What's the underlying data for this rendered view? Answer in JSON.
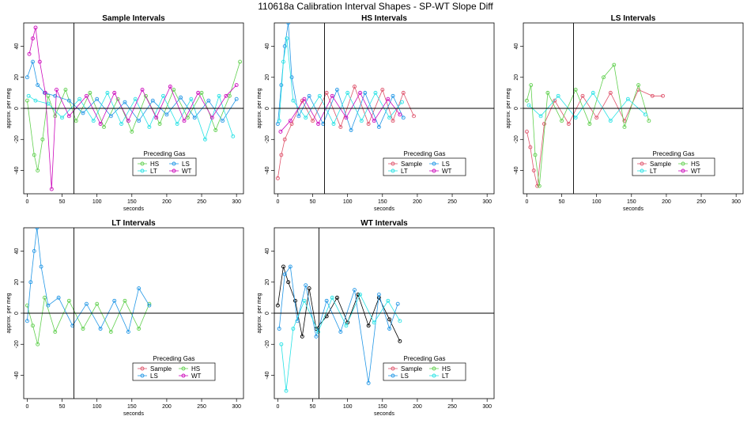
{
  "figure_title": "110618a   Calibration Interval Shapes - SP-WT Slope Diff",
  "colors": {
    "Sample": "#df536b",
    "HS": "#61d04f",
    "LS": "#2297e6",
    "LT": "#28e2e5",
    "WT": "#cd0bbc",
    "LSalt": "#f5c710",
    "black": "#000000"
  },
  "chart_data": [
    {
      "type": "scatter",
      "title": "Sample Intervals",
      "xlabel": "seconds",
      "ylabel": "approx. per meg",
      "xlim": [
        -5,
        310
      ],
      "ylim": [
        -55,
        55
      ],
      "xticks": [
        0,
        50,
        100,
        150,
        200,
        250,
        300
      ],
      "yticks": [
        -40,
        -20,
        0,
        20,
        40
      ],
      "vline_x": 67,
      "hline_y": 0,
      "legend": {
        "title": "Preceding Gas",
        "placement": "bottom-center",
        "entries": [
          "HS",
          "LS",
          "LT",
          "WT"
        ]
      },
      "series": [
        {
          "name": "HS",
          "color": "#61d04f",
          "points": [
            [
              0,
              5
            ],
            [
              10,
              -30
            ],
            [
              15,
              -40
            ],
            [
              22,
              -20
            ],
            [
              30,
              8
            ],
            [
              40,
              -5
            ],
            [
              55,
              12
            ],
            [
              70,
              -8
            ],
            [
              90,
              10
            ],
            [
              110,
              -12
            ],
            [
              130,
              6
            ],
            [
              150,
              -15
            ],
            [
              170,
              8
            ],
            [
              190,
              -10
            ],
            [
              210,
              12
            ],
            [
              230,
              -6
            ],
            [
              250,
              10
            ],
            [
              270,
              -14
            ],
            [
              290,
              8
            ],
            [
              305,
              30
            ]
          ]
        },
        {
          "name": "LS",
          "color": "#2297e6",
          "points": [
            [
              0,
              20
            ],
            [
              8,
              30
            ],
            [
              15,
              15
            ],
            [
              25,
              10
            ],
            [
              40,
              8
            ],
            [
              60,
              5
            ],
            [
              80,
              -3
            ],
            [
              100,
              6
            ],
            [
              120,
              -5
            ],
            [
              140,
              4
            ],
            [
              160,
              -8
            ],
            [
              180,
              5
            ],
            [
              200,
              -4
            ],
            [
              220,
              7
            ],
            [
              240,
              -6
            ],
            [
              260,
              5
            ],
            [
              280,
              -8
            ],
            [
              300,
              6
            ]
          ]
        },
        {
          "name": "LT",
          "color": "#28e2e5",
          "points": [
            [
              2,
              8
            ],
            [
              12,
              5
            ],
            [
              30,
              3
            ],
            [
              50,
              -6
            ],
            [
              75,
              6
            ],
            [
              95,
              -8
            ],
            [
              115,
              10
            ],
            [
              135,
              -10
            ],
            [
              155,
              6
            ],
            [
              175,
              -12
            ],
            [
              195,
              8
            ],
            [
              215,
              -10
            ],
            [
              235,
              6
            ],
            [
              255,
              -20
            ],
            [
              275,
              8
            ],
            [
              295,
              -18
            ]
          ]
        },
        {
          "name": "WT",
          "color": "#cd0bbc",
          "points": [
            [
              3,
              35
            ],
            [
              8,
              45
            ],
            [
              12,
              52
            ],
            [
              18,
              30
            ],
            [
              26,
              10
            ],
            [
              35,
              -52
            ],
            [
              42,
              12
            ],
            [
              60,
              -5
            ],
            [
              85,
              8
            ],
            [
              105,
              -10
            ],
            [
              125,
              10
            ],
            [
              145,
              -8
            ],
            [
              165,
              12
            ],
            [
              185,
              -6
            ],
            [
              205,
              14
            ],
            [
              225,
              -8
            ],
            [
              245,
              10
            ],
            [
              265,
              -6
            ],
            [
              285,
              8
            ],
            [
              300,
              15
            ]
          ]
        }
      ]
    },
    {
      "type": "scatter",
      "title": "HS Intervals",
      "xlabel": "seconds",
      "ylabel": "approx. per meg",
      "xlim": [
        -5,
        310
      ],
      "ylim": [
        -55,
        55
      ],
      "xticks": [
        0,
        50,
        100,
        150,
        200,
        250,
        300
      ],
      "yticks": [
        -40,
        -20,
        0,
        20,
        40
      ],
      "vline_x": 67,
      "hline_y": 0,
      "legend": {
        "title": "Preceding Gas",
        "placement": "bottom-center",
        "entries": [
          "Sample",
          "LS",
          "LT",
          "WT"
        ]
      },
      "series": [
        {
          "name": "Sample",
          "color": "#df536b",
          "points": [
            [
              0,
              -45
            ],
            [
              5,
              -30
            ],
            [
              10,
              -20
            ],
            [
              20,
              -10
            ],
            [
              35,
              5
            ],
            [
              50,
              -8
            ],
            [
              70,
              10
            ],
            [
              90,
              -12
            ],
            [
              110,
              14
            ],
            [
              130,
              -10
            ],
            [
              150,
              12
            ],
            [
              165,
              -8
            ],
            [
              180,
              10
            ],
            [
              195,
              -5
            ]
          ]
        },
        {
          "name": "LS",
          "color": "#2297e6",
          "points": [
            [
              0,
              -10
            ],
            [
              5,
              15
            ],
            [
              10,
              40
            ],
            [
              15,
              55
            ],
            [
              20,
              20
            ],
            [
              30,
              -5
            ],
            [
              45,
              8
            ],
            [
              65,
              -10
            ],
            [
              85,
              12
            ],
            [
              105,
              -14
            ],
            [
              125,
              10
            ],
            [
              145,
              -12
            ],
            [
              165,
              8
            ],
            [
              180,
              -6
            ]
          ]
        },
        {
          "name": "LT",
          "color": "#28e2e5",
          "points": [
            [
              2,
              -8
            ],
            [
              8,
              30
            ],
            [
              13,
              45
            ],
            [
              22,
              5
            ],
            [
              40,
              -6
            ],
            [
              60,
              8
            ],
            [
              80,
              -10
            ],
            [
              100,
              10
            ],
            [
              120,
              -8
            ],
            [
              140,
              10
            ],
            [
              160,
              -6
            ],
            [
              178,
              4
            ]
          ]
        },
        {
          "name": "WT",
          "color": "#cd0bbc",
          "points": [
            [
              4,
              -15
            ],
            [
              18,
              -8
            ],
            [
              38,
              6
            ],
            [
              58,
              -10
            ],
            [
              78,
              8
            ],
            [
              98,
              -6
            ],
            [
              118,
              10
            ],
            [
              138,
              -8
            ],
            [
              158,
              6
            ],
            [
              175,
              -4
            ]
          ]
        }
      ]
    },
    {
      "type": "scatter",
      "title": "LS Intervals",
      "xlabel": "seconds",
      "ylabel": "approx. per meg",
      "xlim": [
        -5,
        310
      ],
      "ylim": [
        -55,
        55
      ],
      "xticks": [
        0,
        50,
        100,
        150,
        200,
        250,
        300
      ],
      "yticks": [
        -40,
        -20,
        0,
        20,
        40
      ],
      "vline_x": 67,
      "hline_y": 0,
      "legend": {
        "title": "Preceding Gas",
        "placement": "bottom-center",
        "entries": [
          "Sample",
          "HS",
          "LT",
          "WT"
        ]
      },
      "series": [
        {
          "name": "Sample",
          "color": "#df536b",
          "points": [
            [
              0,
              -15
            ],
            [
              5,
              -25
            ],
            [
              10,
              -40
            ],
            [
              15,
              -50
            ],
            [
              25,
              -10
            ],
            [
              40,
              5
            ],
            [
              60,
              -10
            ],
            [
              80,
              8
            ],
            [
              100,
              -6
            ],
            [
              120,
              10
            ],
            [
              140,
              -8
            ],
            [
              160,
              12
            ],
            [
              180,
              8
            ],
            [
              195,
              8
            ]
          ]
        },
        {
          "name": "HS",
          "color": "#61d04f",
          "points": [
            [
              0,
              5
            ],
            [
              6,
              15
            ],
            [
              12,
              -30
            ],
            [
              18,
              -50
            ],
            [
              30,
              10
            ],
            [
              50,
              -8
            ],
            [
              70,
              12
            ],
            [
              90,
              -10
            ],
            [
              110,
              20
            ],
            [
              125,
              28
            ],
            [
              140,
              -12
            ],
            [
              160,
              15
            ],
            [
              175,
              -8
            ]
          ]
        },
        {
          "name": "LT",
          "color": "#28e2e5",
          "points": [
            [
              3,
              2
            ],
            [
              20,
              -5
            ],
            [
              45,
              8
            ],
            [
              70,
              -6
            ],
            [
              95,
              10
            ],
            [
              120,
              -8
            ],
            [
              145,
              6
            ],
            [
              170,
              -4
            ]
          ]
        }
      ]
    },
    {
      "type": "scatter",
      "title": "LT Intervals",
      "xlabel": "seconds",
      "ylabel": "approx. per meg",
      "xlim": [
        -5,
        310
      ],
      "ylim": [
        -55,
        55
      ],
      "xticks": [
        0,
        50,
        100,
        150,
        200,
        250,
        300
      ],
      "yticks": [
        -40,
        -20,
        0,
        20,
        40
      ],
      "vline_x": 67,
      "hline_y": 0,
      "legend": {
        "title": "Preceding Gas",
        "placement": "bottom-right",
        "entries": [
          "Sample",
          "HS",
          "LS",
          "WT"
        ]
      },
      "series": [
        {
          "name": "HS",
          "color": "#61d04f",
          "points": [
            [
              0,
              5
            ],
            [
              8,
              -8
            ],
            [
              15,
              -20
            ],
            [
              25,
              10
            ],
            [
              40,
              -12
            ],
            [
              60,
              8
            ],
            [
              80,
              -10
            ],
            [
              100,
              6
            ],
            [
              120,
              -12
            ],
            [
              140,
              8
            ],
            [
              160,
              -10
            ],
            [
              175,
              6
            ]
          ]
        },
        {
          "name": "LS",
          "color": "#2297e6",
          "points": [
            [
              0,
              -5
            ],
            [
              5,
              20
            ],
            [
              10,
              40
            ],
            [
              14,
              55
            ],
            [
              20,
              30
            ],
            [
              30,
              5
            ],
            [
              45,
              10
            ],
            [
              65,
              -8
            ],
            [
              85,
              6
            ],
            [
              105,
              -10
            ],
            [
              125,
              8
            ],
            [
              145,
              -12
            ],
            [
              160,
              16
            ],
            [
              175,
              5
            ]
          ]
        }
      ]
    },
    {
      "type": "scatter",
      "title": "WT Intervals",
      "xlabel": "seconds",
      "ylabel": "approx. per meg",
      "xlim": [
        -5,
        310
      ],
      "ylim": [
        -55,
        55
      ],
      "xticks": [
        0,
        50,
        100,
        150,
        200,
        250,
        300
      ],
      "yticks": [
        -40,
        -20,
        0,
        20,
        40
      ],
      "vline_x": 59,
      "hline_y": 0,
      "legend": {
        "title": "Preceding Gas",
        "placement": "bottom-center",
        "entries": [
          "Sample",
          "HS",
          "LS",
          "LT"
        ]
      },
      "series": [
        {
          "name": "black",
          "color": "#000000",
          "points": [
            [
              0,
              5
            ],
            [
              8,
              30
            ],
            [
              15,
              20
            ],
            [
              25,
              8
            ],
            [
              35,
              -15
            ],
            [
              45,
              16
            ],
            [
              55,
              -10
            ],
            [
              70,
              -2
            ],
            [
              85,
              10
            ],
            [
              100,
              -6
            ],
            [
              115,
              12
            ],
            [
              130,
              -8
            ],
            [
              145,
              10
            ],
            [
              160,
              -4
            ],
            [
              175,
              -18
            ]
          ]
        },
        {
          "name": "LS",
          "color": "#2297e6",
          "points": [
            [
              2,
              -10
            ],
            [
              10,
              25
            ],
            [
              18,
              30
            ],
            [
              28,
              -5
            ],
            [
              40,
              18
            ],
            [
              55,
              -15
            ],
            [
              70,
              8
            ],
            [
              90,
              -12
            ],
            [
              110,
              15
            ],
            [
              130,
              -45
            ],
            [
              145,
              12
            ],
            [
              160,
              -10
            ],
            [
              172,
              6
            ]
          ]
        },
        {
          "name": "LT",
          "color": "#28e2e5",
          "points": [
            [
              5,
              -20
            ],
            [
              12,
              -50
            ],
            [
              22,
              -10
            ],
            [
              38,
              8
            ],
            [
              58,
              -12
            ],
            [
              78,
              10
            ],
            [
              98,
              -8
            ],
            [
              118,
              12
            ],
            [
              138,
              -6
            ],
            [
              158,
              8
            ],
            [
              175,
              -5
            ]
          ]
        }
      ]
    }
  ]
}
